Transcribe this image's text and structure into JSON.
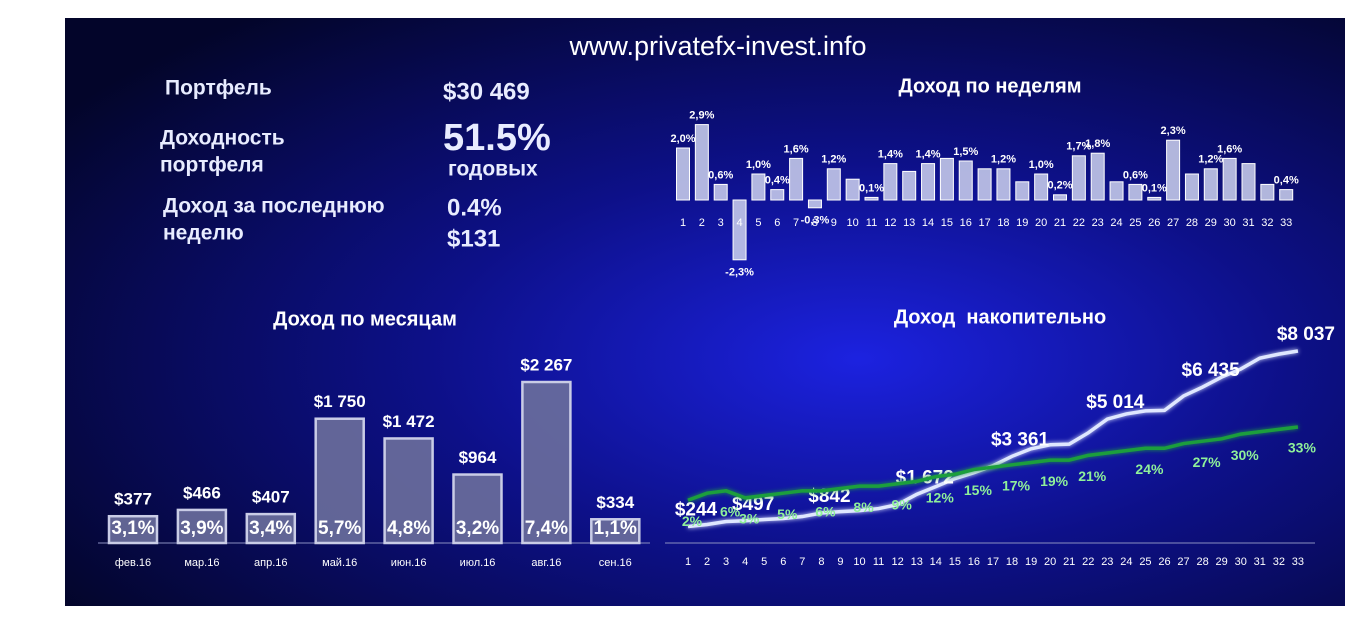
{
  "site": "www.privatefx-invest.info",
  "kpi": {
    "portfolio_label": "Портфель",
    "portfolio_value": "$30 469",
    "return_label": [
      "Доходность",
      "портфеля"
    ],
    "return_value": "51.5%",
    "return_unit": "годовых",
    "week_label": [
      "Доход за последнюю",
      "неделю"
    ],
    "week_percent": "0.4%",
    "week_value": "$131"
  },
  "chart_data": [
    {
      "type": "bar",
      "title": "Доход по неделям",
      "color": "#cfd3ee",
      "categories": [
        1,
        2,
        3,
        4,
        5,
        6,
        7,
        8,
        9,
        10,
        11,
        12,
        13,
        14,
        15,
        16,
        17,
        18,
        19,
        20,
        21,
        22,
        23,
        24,
        25,
        26,
        27,
        28,
        29,
        30,
        31,
        32,
        33
      ],
      "values": [
        2.0,
        2.9,
        0.6,
        -2.3,
        1.0,
        0.4,
        1.6,
        -0.3,
        1.2,
        0.8,
        0.1,
        1.4,
        1.1,
        1.4,
        1.6,
        1.5,
        1.2,
        1.2,
        0.7,
        1.0,
        0.2,
        1.7,
        1.8,
        0.7,
        0.6,
        0.1,
        2.3,
        1.0,
        1.2,
        1.6,
        1.4,
        0.6,
        0.4
      ],
      "value_labels": [
        "2,0%",
        "2,9%",
        "0,6%",
        "-2,3%",
        "1,0%",
        "0,4%",
        "1,6%",
        "-0,3%",
        "1,2%",
        null,
        "0,1%",
        "1,4%",
        null,
        "1,4%",
        null,
        "1,5%",
        null,
        "1,2%",
        null,
        "1,0%",
        "0,2%",
        "1,7%",
        "1,8%",
        null,
        "0,6%",
        "0,1%",
        "2,3%",
        null,
        "1,2%",
        "1,6%",
        null,
        null,
        "0,4%"
      ]
    },
    {
      "type": "bar",
      "title": "Доход по месяцам",
      "color": "#6b6f9c",
      "categories": [
        "фев.16",
        "мар.16",
        "апр.16",
        "май.16",
        "июн.16",
        "июл.16",
        "авг.16",
        "сен.16"
      ],
      "values": [
        377,
        466,
        407,
        1750,
        1472,
        964,
        2267,
        334
      ],
      "value_labels": [
        "$377",
        "$466",
        "$407",
        "$1 750",
        "$1 472",
        "$964",
        "$2 267",
        "$334"
      ],
      "percents": [
        3.1,
        3.9,
        3.4,
        5.7,
        4.8,
        3.2,
        7.4,
        1.1
      ],
      "percent_labels": [
        "3,1%",
        "3,9%",
        "3,4%",
        "5,7%",
        "4,8%",
        "3,2%",
        "7,4%",
        "1,1%"
      ]
    },
    {
      "type": "line",
      "title": "Доход  накопительно",
      "x": [
        1,
        2,
        3,
        4,
        5,
        6,
        7,
        8,
        9,
        10,
        11,
        12,
        13,
        14,
        15,
        16,
        17,
        18,
        19,
        20,
        21,
        22,
        23,
        24,
        25,
        26,
        27,
        28,
        29,
        30,
        31,
        32,
        33
      ],
      "series": [
        {
          "color": "#dfe7ff",
          "values": [
            244,
            332,
            465,
            497,
            553,
            597,
            686,
            842,
            907,
            951,
            1040,
            1217,
            1672,
            2013,
            2367,
            2633,
            2942,
            3361,
            3695,
            3872,
            3900,
            4403,
            5014,
            5243,
            5376,
            5400,
            6040,
            6435,
            6881,
            7235,
            7721,
            7898,
            8037
          ],
          "value_labels": [
            "$244",
            null,
            null,
            "$497",
            null,
            null,
            null,
            "$842",
            null,
            null,
            null,
            null,
            "$1 672",
            null,
            null,
            null,
            null,
            "$3 361",
            null,
            null,
            null,
            null,
            "$5 014",
            null,
            null,
            null,
            null,
            "$6 435",
            null,
            null,
            null,
            null,
            "$8 037"
          ]
        },
        {
          "color": "#1f9e3e",
          "values": [
            2,
            5,
            6,
            3,
            4,
            5,
            6,
            6,
            7,
            8,
            8,
            9,
            10,
            12,
            13,
            15,
            16,
            17,
            18,
            19,
            19,
            21,
            22,
            23,
            24,
            24,
            26,
            27,
            28,
            30,
            31,
            32,
            33
          ],
          "value_labels": [
            "2%",
            null,
            "6%",
            "3%",
            null,
            "5%",
            null,
            "6%",
            null,
            "8%",
            null,
            "9%",
            null,
            "12%",
            null,
            "15%",
            null,
            "17%",
            null,
            "19%",
            null,
            "21%",
            null,
            null,
            "24%",
            null,
            null,
            "27%",
            null,
            "30%",
            null,
            null,
            "33%"
          ]
        }
      ]
    }
  ]
}
